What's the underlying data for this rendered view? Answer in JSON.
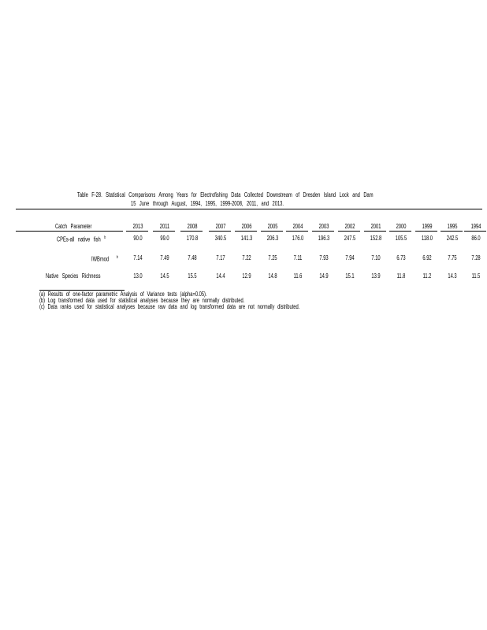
{
  "title": {
    "line1": "Table  F-28.  Statistical   Comparisons    Among   Years   for  Electrofishing     Data   Collected    Downstream     of  Dresden    Island    Lock   and  Dam",
    "line2": "15  June  through  August,   1994,   1995,   1999-2008,   2011,   and  2013."
  },
  "table": {
    "header_label": "Catch    Parameter",
    "years": [
      "2013",
      "2011",
      "2008",
      "2007",
      "2006",
      "2005",
      "2004",
      "2003",
      "2002",
      "2001",
      "2000",
      "1999",
      "1995",
      "1994"
    ],
    "rows": [
      {
        "label": "CPEs-all     native     fish",
        "note": "b",
        "values": [
          "90.0",
          "99.0",
          "170.8",
          "340.5",
          "141.3",
          "206.3",
          "176.0",
          "196.3",
          "247.5",
          "152.8",
          "105.5",
          "118.0",
          "242.5",
          "86.0"
        ]
      },
      {
        "label": "IWBmod",
        "note": "b",
        "values": [
          "7.14",
          "7.49",
          "7.48",
          "7.17",
          "7.22",
          "7.25",
          "7.11",
          "7.93",
          "7.94",
          "7.10",
          "6.73",
          "6.92",
          "7.75",
          "7.28"
        ]
      },
      {
        "label": "Native     Species     Richness",
        "note": "",
        "values": [
          "13.0",
          "14.5",
          "15.5",
          "14.4",
          "12.9",
          "14.8",
          "11.6",
          "14.9",
          "15.1",
          "13.9",
          "11.8",
          "11.2",
          "14.3",
          "11.5"
        ]
      }
    ]
  },
  "footnotes": [
    "(a)   Results      of  one-factor      parametric      Analysis      of  Variance      tests      (alpha=0.05).",
    "(b)   Log   transformed        data    used    for  statistical      analyses       because      they   are   normally       distributed.",
    "(c)   Data     ranks    used     for  statistical       analyses       because      raw   data    and   log   transformed          data    are   not   normally       distributed."
  ]
}
